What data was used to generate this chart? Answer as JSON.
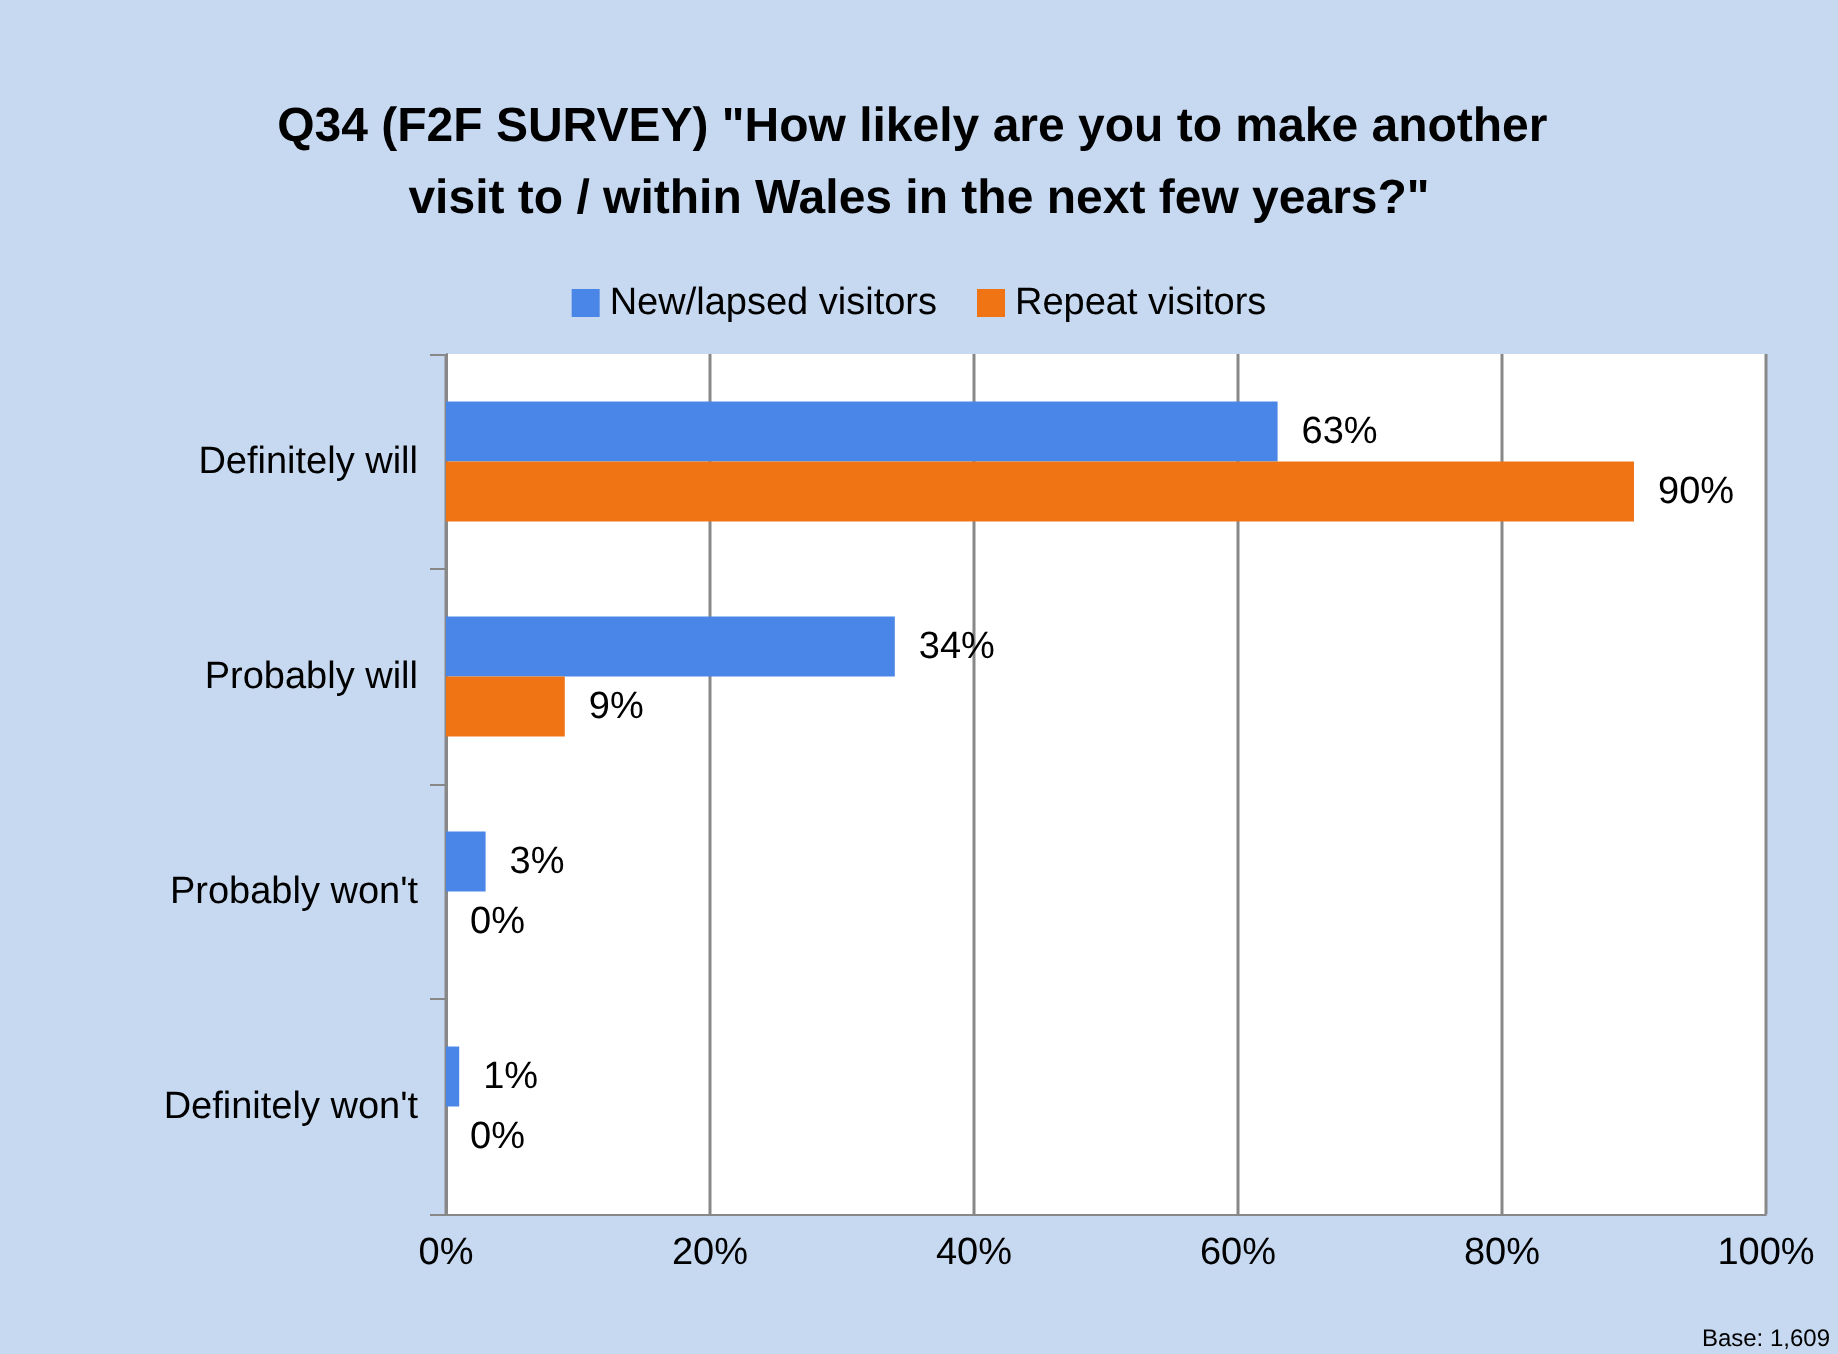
{
  "chart_data": {
    "type": "bar",
    "orientation": "horizontal",
    "title": "Q34 (F2F SURVEY) \"How likely are you to make another visit to / within Wales in the next few years?\"",
    "categories": [
      "Definitely will",
      "Probably will",
      "Probably won't",
      "Definitely won't"
    ],
    "series": [
      {
        "name": "New/lapsed visitors",
        "color": "#4a86e8",
        "values": [
          63,
          34,
          3,
          1
        ],
        "value_labels": [
          "63%",
          "34%",
          "3%",
          "1%"
        ]
      },
      {
        "name": "Repeat visitors",
        "color": "#f07414",
        "values": [
          90,
          9,
          0,
          0
        ],
        "value_labels": [
          "90%",
          "9%",
          "0%",
          "0%"
        ]
      }
    ],
    "xlim": [
      0,
      100
    ],
    "xticks": [
      {
        "value": 0,
        "label": "0%"
      },
      {
        "value": 20,
        "label": "20%"
      },
      {
        "value": 40,
        "label": "40%"
      },
      {
        "value": 60,
        "label": "60%"
      },
      {
        "value": 80,
        "label": "80%"
      },
      {
        "value": 100,
        "label": "100%"
      }
    ],
    "grid": "x",
    "legend": "top",
    "annotations": [
      "Base: 1,609"
    ]
  }
}
